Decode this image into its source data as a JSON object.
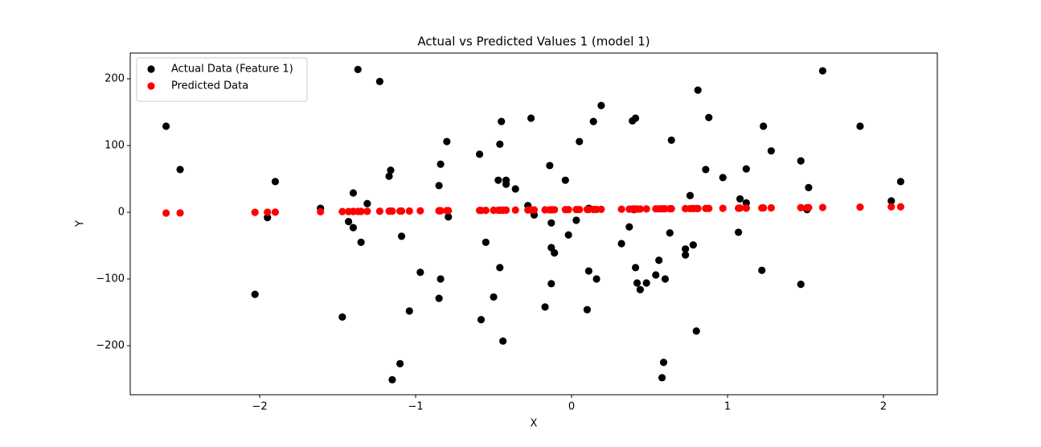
{
  "chart_data": {
    "type": "scatter",
    "title": "Actual vs Predicted Values 1 (model 1)",
    "xlabel": "X",
    "ylabel": "Y",
    "legend": "upper left",
    "grid": false,
    "xlim": [
      -2.83,
      2.345
    ],
    "ylim": [
      -273.5,
      238.6
    ],
    "xticks": [
      {
        "value": -2,
        "label": "−2"
      },
      {
        "value": -1,
        "label": "−1"
      },
      0,
      1,
      2
    ],
    "yticks": [
      {
        "value": -200,
        "label": "−200"
      },
      {
        "value": -100,
        "label": "−100"
      },
      0,
      100,
      200
    ],
    "x": [
      -2.6,
      -2.51,
      -2.03,
      -1.95,
      -1.9,
      -1.61,
      -1.47,
      -1.43,
      -1.4,
      -1.4,
      -1.37,
      -1.35,
      -1.31,
      -1.23,
      -1.16,
      -1.17,
      -1.15,
      -1.1,
      -1.09,
      -1.04,
      -0.97,
      -0.85,
      -0.85,
      -0.84,
      -0.84,
      -0.8,
      -0.79,
      -0.59,
      -0.58,
      -0.55,
      -0.5,
      -0.47,
      -0.46,
      -0.46,
      -0.45,
      -0.44,
      -0.42,
      -0.42,
      -0.36,
      -0.28,
      -0.26,
      -0.24,
      -0.17,
      -0.14,
      -0.13,
      -0.13,
      -0.13,
      -0.11,
      -0.04,
      -0.02,
      0.03,
      0.05,
      0.1,
      0.11,
      0.11,
      0.14,
      0.16,
      0.19,
      0.32,
      0.37,
      0.39,
      0.41,
      0.41,
      0.4,
      0.42,
      0.44,
      0.48,
      0.54,
      0.56,
      0.58,
      0.59,
      0.6,
      0.63,
      0.64,
      0.73,
      0.73,
      0.76,
      0.78,
      0.8,
      0.81,
      0.86,
      0.88,
      0.97,
      1.07,
      1.08,
      1.12,
      1.12,
      1.22,
      1.23,
      1.28,
      1.47,
      1.47,
      1.51,
      1.52,
      1.61,
      1.85,
      2.05,
      2.11
    ],
    "series": [
      {
        "name": "Actual Data (Feature 1)",
        "color": "#000000",
        "values": [
          129,
          64,
          -123,
          -8,
          46,
          6,
          -157,
          -14,
          29,
          -23,
          214,
          -45,
          13,
          196,
          63,
          54,
          -251,
          -227,
          -36,
          -148,
          -90,
          -129,
          40,
          -100,
          72,
          106,
          -7,
          87,
          -161,
          -45,
          -127,
          48,
          102,
          -83,
          136,
          -193,
          42,
          48,
          35,
          10,
          141,
          -4,
          -142,
          70,
          -16,
          -53,
          -107,
          -61,
          48,
          -34,
          -12,
          106,
          -146,
          -88,
          6,
          136,
          -100,
          160,
          -47,
          -22,
          137,
          -83,
          141,
          4,
          -106,
          -116,
          -106,
          -94,
          -72,
          -248,
          -225,
          -100,
          -31,
          108,
          -64,
          -55,
          25,
          -49,
          -178,
          183,
          64,
          142,
          52,
          -30,
          20,
          14,
          65,
          -87,
          129,
          92,
          -108,
          77,
          4,
          37,
          212,
          129,
          17,
          46
        ]
      },
      {
        "name": "Predicted Data",
        "color": "#ff0000",
        "values": [
          -1.2,
          -1.0,
          -0.1,
          0.1,
          0.2,
          0.8,
          1.1,
          1.1,
          1.2,
          1.2,
          1.3,
          1.3,
          1.4,
          1.5,
          1.7,
          1.7,
          1.7,
          1.8,
          1.8,
          1.9,
          2.1,
          2.3,
          2.3,
          2.3,
          2.3,
          2.4,
          2.4,
          2.8,
          2.8,
          2.9,
          3.0,
          3.1,
          3.1,
          3.1,
          3.1,
          3.1,
          3.2,
          3.2,
          3.3,
          3.4,
          3.5,
          3.5,
          3.7,
          3.7,
          3.7,
          3.7,
          3.7,
          3.8,
          3.9,
          4.0,
          4.1,
          4.1,
          4.2,
          4.2,
          4.2,
          4.3,
          4.3,
          4.4,
          4.6,
          4.7,
          4.8,
          4.8,
          4.8,
          4.8,
          4.8,
          4.9,
          5.0,
          5.1,
          5.1,
          5.2,
          5.2,
          5.2,
          5.3,
          5.3,
          5.5,
          5.5,
          5.5,
          5.6,
          5.6,
          5.6,
          5.7,
          5.8,
          5.9,
          6.1,
          6.2,
          6.2,
          6.2,
          6.4,
          6.5,
          6.6,
          6.9,
          6.9,
          7.0,
          7.0,
          7.2,
          7.7,
          8.1,
          8.2
        ]
      }
    ]
  }
}
